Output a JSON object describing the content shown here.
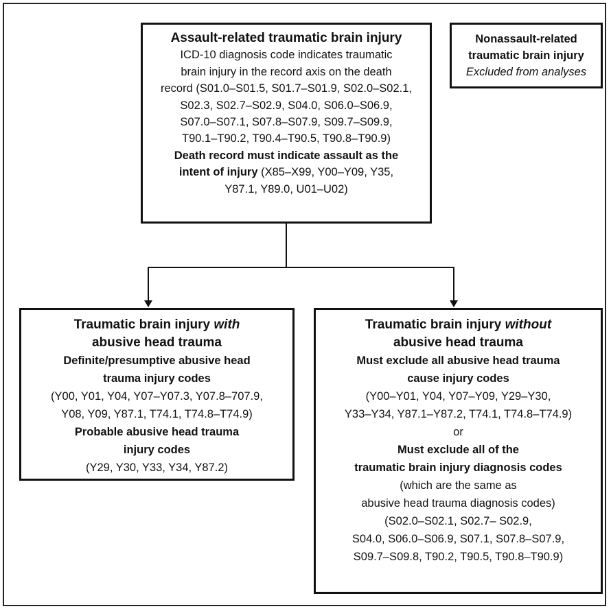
{
  "nodes": [
    {
      "lines": [
        [
          "Assault-related traumatic brain injury"
        ],
        [
          "ICD-10 diagnosis code indicates traumatic"
        ],
        [
          "brain injury in the record axis on the death"
        ],
        [
          "record (S01.0–S01.5, S01.7–S01.9, S02.0–S02.1,"
        ],
        [
          "S02.3, S02.7–S02.9, S04.0, S06.0–S06.9,"
        ],
        [
          "S07.0–S07.1, S07.8–S07.9, S09.7–S09.9,"
        ],
        [
          "T90.1–T90.2, T90.4–T90.5, T90.8–T90.9)"
        ],
        [
          "Death record must indicate assault as the"
        ],
        [
          "intent of injury",
          " (X85–X99, Y00–Y09, Y35,"
        ],
        [
          "Y87.1, Y89.0, U01–U02)"
        ]
      ]
    },
    {
      "lines": [
        [
          "Nonassault-related"
        ],
        [
          "traumatic brain injury"
        ],
        [
          "Excluded from analyses"
        ]
      ]
    },
    {
      "lines": [
        [
          "Traumatic brain injury ",
          "with"
        ],
        [
          "abusive head trauma"
        ],
        [
          "Definite/presumptive abusive head"
        ],
        [
          "trauma injury codes"
        ],
        [
          "(Y00, Y01, Y04, Y07–Y07.3, Y07.8–707.9,"
        ],
        [
          "Y08, Y09, Y87.1, T74.1, T74.8–T74.9)"
        ],
        [
          "Probable abusive head trauma"
        ],
        [
          "injury codes"
        ],
        [
          "(Y29, Y30, Y33, Y34, Y87.2)"
        ]
      ]
    },
    {
      "lines": [
        [
          "Traumatic brain injury ",
          "without"
        ],
        [
          "abusive head trauma"
        ],
        [
          "Must exclude all abusive head trauma"
        ],
        [
          "cause injury codes"
        ],
        [
          "(Y00–Y01, Y04, Y07–Y09, Y29–Y30,"
        ],
        [
          "Y33–Y34, Y87.1–Y87.2, T74.1, T74.8–T74.9)"
        ],
        [
          "or"
        ],
        [
          "Must exclude all of the"
        ],
        [
          "traumatic brain injury diagnosis codes"
        ],
        [
          "(which are the same as"
        ],
        [
          "abusive head trauma diagnosis codes)"
        ],
        [
          "(S02.0–S02.1, S02.7– S02.9,"
        ],
        [
          "S04.0, S06.0–S06.9, S07.1, S07.8–S07.9,"
        ],
        [
          "S09.7–S09.8, T90.2, T90.5, T90.8–T90.9)"
        ]
      ]
    }
  ]
}
